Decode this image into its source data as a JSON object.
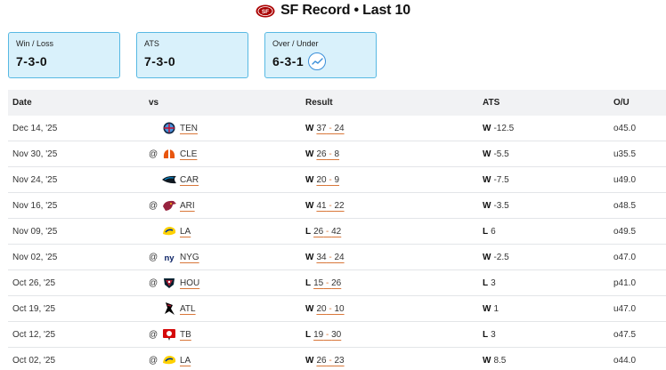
{
  "header": {
    "title": "SF Record • Last 10"
  },
  "cards": [
    {
      "label": "Win / Loss",
      "value": "7-3-0"
    },
    {
      "label": "ATS",
      "value": "7-3-0"
    },
    {
      "label": "Over / Under",
      "value": "6-3-1"
    }
  ],
  "table": {
    "columns": {
      "date": "Date",
      "vs": "vs",
      "result": "Result",
      "ats": "ATS",
      "ou": "O/U"
    },
    "rows": [
      {
        "date": "Dec 14, '25",
        "at": "",
        "team": "TEN",
        "wl": "W",
        "s1": "37",
        "s2": "24",
        "ats_wl": "W",
        "ats_val": "-12.5",
        "ou": "o45.0"
      },
      {
        "date": "Nov 30, '25",
        "at": "@",
        "team": "CLE",
        "wl": "W",
        "s1": "26",
        "s2": "8",
        "ats_wl": "W",
        "ats_val": "-5.5",
        "ou": "u35.5"
      },
      {
        "date": "Nov 24, '25",
        "at": "",
        "team": "CAR",
        "wl": "W",
        "s1": "20",
        "s2": "9",
        "ats_wl": "W",
        "ats_val": "-7.5",
        "ou": "u49.0"
      },
      {
        "date": "Nov 16, '25",
        "at": "@",
        "team": "ARI",
        "wl": "W",
        "s1": "41",
        "s2": "22",
        "ats_wl": "W",
        "ats_val": "-3.5",
        "ou": "o48.5"
      },
      {
        "date": "Nov 09, '25",
        "at": "",
        "team": "LA",
        "wl": "L",
        "s1": "26",
        "s2": "42",
        "ats_wl": "L",
        "ats_val": "6",
        "ou": "o49.5"
      },
      {
        "date": "Nov 02, '25",
        "at": "@",
        "team": "NYG",
        "wl": "W",
        "s1": "34",
        "s2": "24",
        "ats_wl": "W",
        "ats_val": "-2.5",
        "ou": "o47.0"
      },
      {
        "date": "Oct 26, '25",
        "at": "@",
        "team": "HOU",
        "wl": "L",
        "s1": "15",
        "s2": "26",
        "ats_wl": "L",
        "ats_val": "3",
        "ou": "p41.0"
      },
      {
        "date": "Oct 19, '25",
        "at": "",
        "team": "ATL",
        "wl": "W",
        "s1": "20",
        "s2": "10",
        "ats_wl": "W",
        "ats_val": "1",
        "ou": "u47.0"
      },
      {
        "date": "Oct 12, '25",
        "at": "@",
        "team": "TB",
        "wl": "L",
        "s1": "19",
        "s2": "30",
        "ats_wl": "L",
        "ats_val": "3",
        "ou": "o47.5"
      },
      {
        "date": "Oct 02, '25",
        "at": "@",
        "team": "LA",
        "wl": "W",
        "s1": "26",
        "s2": "23",
        "ats_wl": "W",
        "ats_val": "8.5",
        "ou": "o44.0"
      }
    ]
  },
  "logos": {
    "TEN": {
      "icon": "titans-logo-icon",
      "color": "#4b92db"
    },
    "CLE": {
      "icon": "browns-logo-icon",
      "color": "#e8560f"
    },
    "CAR": {
      "icon": "panthers-logo-icon",
      "color": "#0085ca"
    },
    "ARI": {
      "icon": "cardinals-logo-icon",
      "color": "#97233f"
    },
    "LA": {
      "icon": "rams-logo-icon",
      "color": "#ffd100"
    },
    "NYG": {
      "icon": "giants-logo-icon",
      "color": "#0b2265"
    },
    "HOU": {
      "icon": "texans-logo-icon",
      "color": "#03202f"
    },
    "ATL": {
      "icon": "falcons-logo-icon",
      "color": "#a71930"
    },
    "TB": {
      "icon": "buccaneers-logo-icon",
      "color": "#d50a0a"
    }
  }
}
